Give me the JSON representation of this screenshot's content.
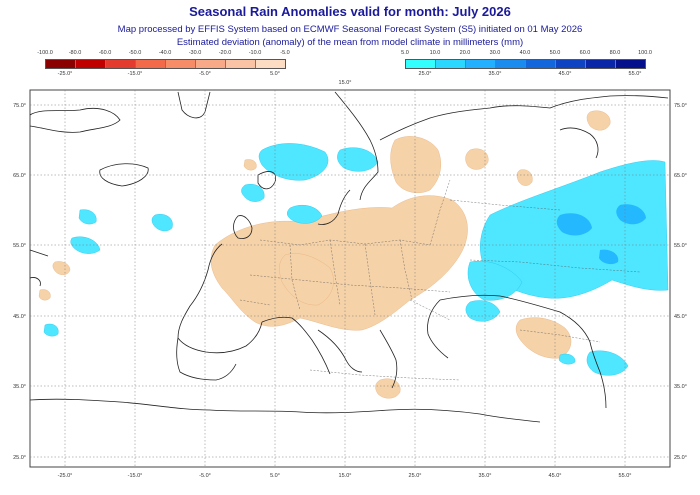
{
  "header": {
    "title": "Seasonal Rain Anomalies valid for month: July 2026",
    "line1": "Map processed by EFFIS System based on ECMWF Seasonal Forecast System (S5) initiated on 01 May 2026",
    "line2": "Estimated deviation (anomaly) of the mean from model climate in millimeters (mm)"
  },
  "legend_negative": {
    "labels": [
      "-100.0",
      "-80.0",
      "-60.0",
      "-50.0",
      "-40.0",
      "-30.0",
      "-20.0",
      "-10.0",
      "-5.0"
    ],
    "colors": [
      "#8b0000",
      "#c00000",
      "#e33b2e",
      "#f26a4a",
      "#f68c68",
      "#f8a988",
      "#fac3a6",
      "#fcdcc3"
    ],
    "ticks": [
      "-25.0°",
      "-15.0°",
      "-5.0°",
      "5.0°"
    ]
  },
  "legend_positive": {
    "labels": [
      "5.0",
      "10.0",
      "20.0",
      "30.0",
      "40.0",
      "50.0",
      "60.0",
      "80.0",
      "100.0"
    ],
    "colors": [
      "#33ffff",
      "#2ad8ff",
      "#22b0ff",
      "#1a8cf0",
      "#1466dd",
      "#0e44c4",
      "#0a26a8",
      "#05108c"
    ],
    "ticks": [
      "25.0°",
      "35.0°",
      "45.0°",
      "55.0°"
    ]
  },
  "map": {
    "lat_labels": [
      "75.0°",
      "65.0°",
      "55.0°",
      "45.0°",
      "35.0°",
      "25.0°"
    ],
    "lon_labels": [
      "-25.0°",
      "-15.0°",
      "-5.0°",
      "5.0°",
      "15.0°",
      "25.0°",
      "35.0°",
      "45.0°",
      "55.0°"
    ],
    "top_lon_labels": [
      "15.0°"
    ]
  }
}
